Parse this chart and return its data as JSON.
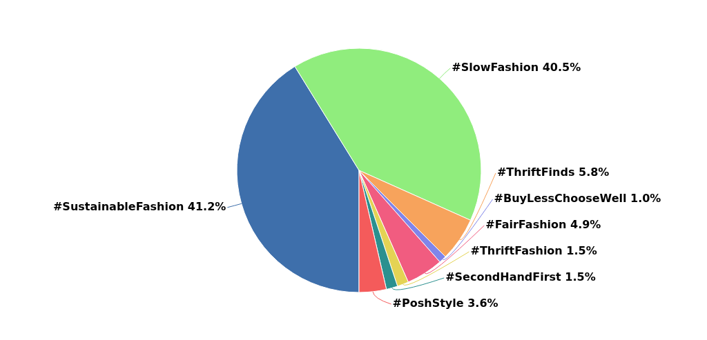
{
  "chart_data": {
    "type": "pie",
    "categories": [
      "#SustainableFashion",
      "#SlowFashion",
      "#ThriftFinds",
      "#BuyLessChooseWell",
      "#FairFashion",
      "#ThriftFashion",
      "#SecondHandFirst",
      "#PoshStyle"
    ],
    "values": [
      41.2,
      40.5,
      5.8,
      1.0,
      4.9,
      1.5,
      1.5,
      3.6
    ],
    "value_labels": [
      "41.2%",
      "40.5%",
      "5.8%",
      "1.0%",
      "4.9%",
      "1.5%",
      "1.5%",
      "3.6%"
    ],
    "colors": [
      "#3e6fab",
      "#90ed7d",
      "#f7a35c",
      "#8085e9",
      "#f15c80",
      "#e4d354",
      "#2b908f",
      "#f45b5b"
    ]
  }
}
